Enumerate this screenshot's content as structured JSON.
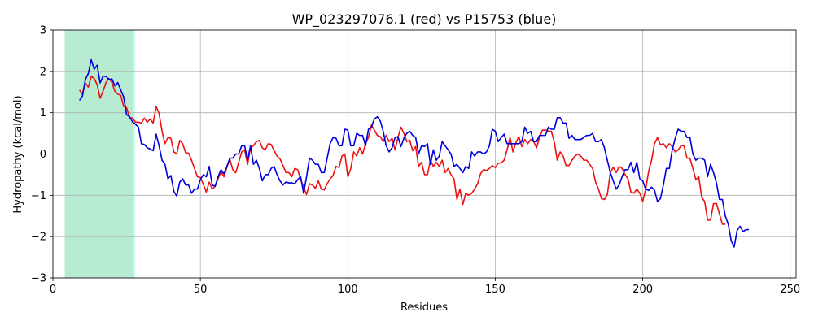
{
  "chart_data": {
    "type": "line",
    "title": "WP_023297076.1 (red) vs P15753 (blue)",
    "xlabel": "Residues",
    "ylabel": "Hydropathy (kcal/mol)",
    "xlim": [
      0,
      252
    ],
    "ylim": [
      -3,
      3
    ],
    "xticks": [
      0,
      50,
      100,
      150,
      200,
      250
    ],
    "yticks": [
      -3,
      -2,
      -1,
      0,
      1,
      2,
      3
    ],
    "grid": true,
    "zero_line": true,
    "highlight_regions": [
      {
        "x_start": 4,
        "x_end": 27.5,
        "color": "#b8ecd2",
        "edge_color": "#c8f7f0"
      }
    ],
    "series": [
      {
        "name": "WP_023297076.1",
        "color": "#ee1111",
        "x_start": 9,
        "step": 1,
        "values": [
          1.55,
          1.45,
          1.72,
          1.62,
          1.88,
          1.83,
          1.68,
          1.35,
          1.52,
          1.73,
          1.83,
          1.73,
          1.52,
          1.45,
          1.42,
          1.15,
          1.12,
          0.88,
          0.87,
          0.77,
          0.77,
          0.75,
          0.87,
          0.77,
          0.85,
          0.75,
          1.15,
          0.98,
          0.55,
          0.25,
          0.4,
          0.38,
          0.05,
          0.0,
          0.33,
          0.25,
          0.03,
          0.02,
          -0.15,
          -0.35,
          -0.55,
          -0.57,
          -0.73,
          -0.92,
          -0.68,
          -0.85,
          -0.78,
          -0.6,
          -0.43,
          -0.55,
          -0.32,
          -0.13,
          -0.38,
          -0.45,
          -0.2,
          0.05,
          0.1,
          -0.25,
          0.15,
          0.2,
          0.3,
          0.33,
          0.15,
          0.1,
          0.25,
          0.23,
          0.08,
          -0.05,
          -0.12,
          -0.28,
          -0.45,
          -0.45,
          -0.55,
          -0.35,
          -0.38,
          -0.62,
          -0.8,
          -0.98,
          -0.72,
          -0.75,
          -0.83,
          -0.65,
          -0.85,
          -0.87,
          -0.72,
          -0.6,
          -0.52,
          -0.3,
          -0.33,
          -0.05,
          0.0,
          -0.55,
          -0.35,
          0.05,
          -0.05,
          0.15,
          0.0,
          0.25,
          0.4,
          0.7,
          0.58,
          0.45,
          0.42,
          0.3,
          0.45,
          0.3,
          0.38,
          0.1,
          0.4,
          0.65,
          0.5,
          0.3,
          0.33,
          0.08,
          0.18,
          -0.3,
          -0.2,
          -0.5,
          -0.5,
          -0.15,
          -0.3,
          -0.2,
          -0.3,
          -0.15,
          -0.45,
          -0.35,
          -0.5,
          -0.6,
          -1.1,
          -0.85,
          -1.22,
          -0.95,
          -1.0,
          -0.95,
          -0.85,
          -0.72,
          -0.48,
          -0.38,
          -0.4,
          -0.35,
          -0.28,
          -0.33,
          -0.22,
          -0.22,
          -0.15,
          0.1,
          0.4,
          0.05,
          0.28,
          0.42,
          0.18,
          0.35,
          0.25,
          0.35,
          0.3,
          0.15,
          0.4,
          0.58,
          0.58,
          0.55,
          0.55,
          0.3,
          -0.15,
          0.05,
          -0.05,
          -0.28,
          -0.28,
          -0.15,
          -0.05,
          0.0,
          -0.05,
          -0.15,
          -0.15,
          -0.25,
          -0.35,
          -0.68,
          -0.85,
          -1.08,
          -1.1,
          -0.98,
          -0.45,
          -0.32,
          -0.45,
          -0.3,
          -0.35,
          -0.5,
          -0.6,
          -0.92,
          -0.95,
          -0.85,
          -0.95,
          -1.15,
          -0.85,
          -0.42,
          -0.15,
          0.25,
          0.4,
          0.22,
          0.25,
          0.15,
          0.25,
          0.18,
          0.05,
          0.1,
          0.2,
          0.2,
          -0.1,
          -0.1,
          -0.35,
          -0.62,
          -0.55,
          -1.05,
          -1.15,
          -1.6,
          -1.6,
          -1.2,
          -1.2,
          -1.45,
          -1.7,
          -1.7
        ]
      },
      {
        "name": "P15753",
        "color": "#0000dd",
        "x_start": 9,
        "step": 1,
        "values": [
          1.3,
          1.4,
          1.8,
          1.95,
          2.28,
          2.05,
          2.15,
          1.72,
          1.88,
          1.88,
          1.8,
          1.82,
          1.65,
          1.73,
          1.55,
          1.38,
          0.95,
          0.9,
          0.78,
          0.72,
          0.65,
          0.25,
          0.23,
          0.15,
          0.12,
          0.08,
          0.48,
          0.2,
          -0.15,
          -0.25,
          -0.6,
          -0.52,
          -0.9,
          -1.02,
          -0.68,
          -0.6,
          -0.75,
          -0.75,
          -0.95,
          -0.85,
          -0.85,
          -0.62,
          -0.5,
          -0.55,
          -0.3,
          -0.75,
          -0.78,
          -0.55,
          -0.38,
          -0.48,
          -0.3,
          -0.1,
          -0.1,
          0.0,
          0.0,
          0.2,
          0.2,
          -0.15,
          0.2,
          -0.25,
          -0.15,
          -0.35,
          -0.65,
          -0.5,
          -0.5,
          -0.35,
          -0.3,
          -0.5,
          -0.65,
          -0.75,
          -0.68,
          -0.7,
          -0.7,
          -0.72,
          -0.62,
          -0.55,
          -0.95,
          -0.55,
          -0.1,
          -0.15,
          -0.25,
          -0.25,
          -0.45,
          -0.45,
          -0.1,
          0.25,
          0.4,
          0.38,
          0.2,
          0.2,
          0.6,
          0.58,
          0.2,
          0.2,
          0.5,
          0.45,
          0.45,
          0.2,
          0.6,
          0.65,
          0.85,
          0.9,
          0.8,
          0.55,
          0.2,
          0.05,
          0.15,
          0.4,
          0.42,
          0.18,
          0.38,
          0.5,
          0.55,
          0.45,
          0.4,
          0.0,
          0.2,
          0.18,
          0.25,
          -0.25,
          0.1,
          -0.15,
          -0.05,
          0.3,
          0.2,
          0.1,
          0.0,
          -0.3,
          -0.25,
          -0.35,
          -0.45,
          -0.3,
          -0.35,
          0.05,
          -0.05,
          0.05,
          0.05,
          0.0,
          0.05,
          0.2,
          0.6,
          0.55,
          0.3,
          0.4,
          0.48,
          0.25,
          0.25,
          0.25,
          0.25,
          0.25,
          0.3,
          0.65,
          0.5,
          0.55,
          0.3,
          0.3,
          0.45,
          0.45,
          0.45,
          0.65,
          0.6,
          0.6,
          0.88,
          0.88,
          0.75,
          0.75,
          0.38,
          0.45,
          0.35,
          0.35,
          0.35,
          0.4,
          0.45,
          0.45,
          0.5,
          0.3,
          0.3,
          0.35,
          0.15,
          -0.15,
          -0.45,
          -0.65,
          -0.85,
          -0.75,
          -0.55,
          -0.38,
          -0.38,
          -0.2,
          -0.45,
          -0.2,
          -0.6,
          -0.65,
          -0.85,
          -0.88,
          -0.8,
          -0.88,
          -1.15,
          -1.08,
          -0.75,
          -0.35,
          -0.35,
          0.1,
          0.38,
          0.6,
          0.55,
          0.55,
          0.4,
          0.4,
          0.0,
          -0.15,
          -0.1,
          -0.1,
          -0.15,
          -0.55,
          -0.25,
          -0.45,
          -0.7,
          -1.1,
          -1.1,
          -1.5,
          -1.7,
          -2.1,
          -2.25,
          -1.85,
          -1.75,
          -1.88,
          -1.83,
          -1.83
        ]
      }
    ]
  }
}
